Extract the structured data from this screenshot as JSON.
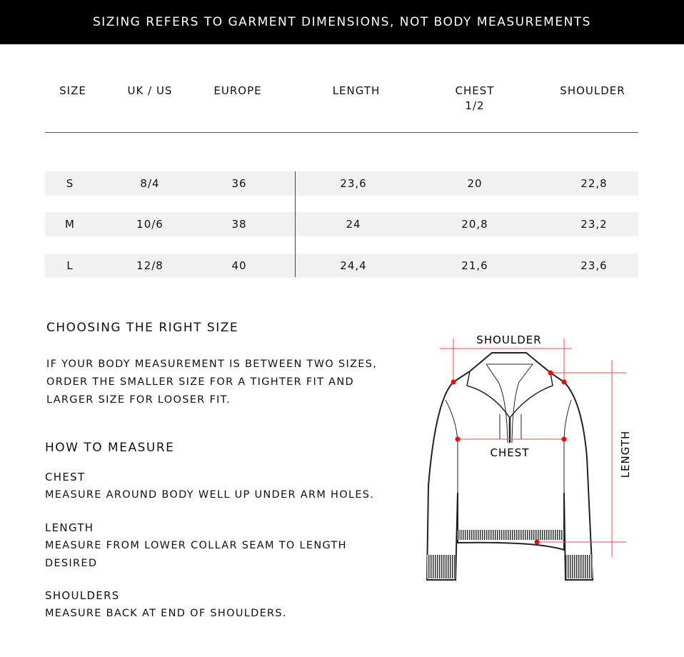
{
  "banner": "SIZING REFERS TO GARMENT DIMENSIONS, NOT BODY MEASUREMENTS",
  "table": {
    "headers": [
      "SIZE",
      "UK / US",
      "EUROPE",
      "LENGTH",
      "CHEST\n1/2",
      "SHOULDER"
    ],
    "rows": [
      [
        "S",
        "8/4",
        "36",
        "23,6",
        "20",
        "22,8"
      ],
      [
        "M",
        "10/6",
        "38",
        "24",
        "20,8",
        "23,2"
      ],
      [
        "L",
        "12/8",
        "40",
        "24,4",
        "21,6",
        "23,6"
      ]
    ]
  },
  "choosing": {
    "title": "CHOOSING THE RIGHT SIZE",
    "lines": [
      "IF YOUR BODY MEASUREMENT IS BETWEEN TWO SIZES,",
      "ORDER THE SMALLER SIZE FOR A TIGHTER FIT AND",
      "LARGER SIZE FOR LOOSER FIT."
    ]
  },
  "measure": {
    "title": "HOW TO MEASURE",
    "items": [
      {
        "label": "CHEST",
        "lines": [
          "MEASURE AROUND BODY WELL UP UNDER ARM HOLES."
        ]
      },
      {
        "label": "LENGTH",
        "lines": [
          "MEASURE FROM LOWER COLLAR SEAM TO LENGTH",
          "DESIRED"
        ]
      },
      {
        "label": "SHOULDERS",
        "lines": [
          "MEASURE BACK AT END OF SHOULDERS."
        ]
      }
    ]
  },
  "diagram": {
    "shoulder": "SHOULDER",
    "chest": "CHEST",
    "length": "LENGTH",
    "accent": "#ff0000"
  }
}
